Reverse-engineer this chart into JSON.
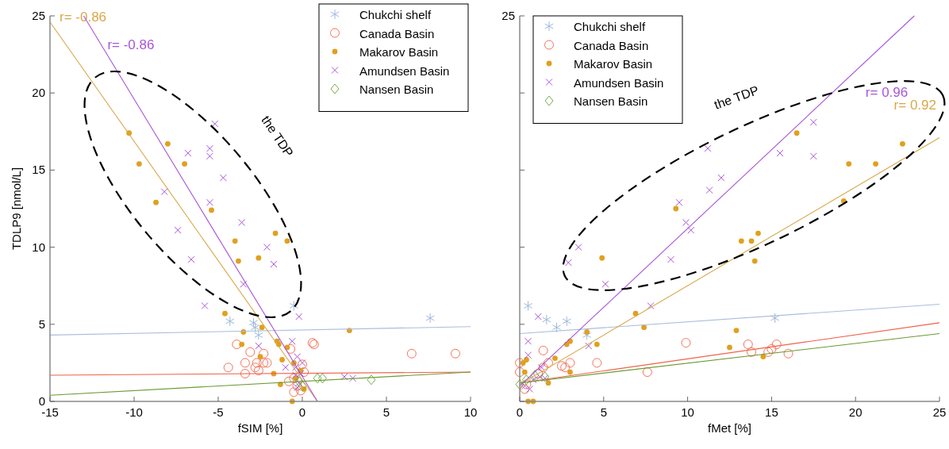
{
  "chart_data": [
    {
      "type": "scatter",
      "xlabel": "fSIM [%]",
      "ylabel": "TDLP9 [nmol/L]",
      "xlim": [
        -15,
        10
      ],
      "xticks": [
        -15,
        -10,
        -5,
        0,
        5,
        10
      ],
      "ylim": [
        0,
        25
      ],
      "yticks": [
        0,
        5,
        10,
        15,
        20,
        25
      ],
      "grid": false,
      "legend": "top right",
      "annotations": [
        "the TDP"
      ],
      "series": [
        {
          "name": "Chukchi shelf",
          "color": "#9fb8da",
          "x": [
            -4.3,
            -2.9,
            -2.8,
            -2.6,
            -0.5,
            7.6
          ],
          "values": [
            5.2,
            5.1,
            4.8,
            4.3,
            6.2,
            5.4
          ]
        },
        {
          "name": "Canada Basin",
          "color": "#f4735a",
          "marker": "circle",
          "x": [
            -3.9,
            -3.1,
            -2.3,
            -4.4,
            -3.4,
            -2.8,
            -2.7,
            -2.3,
            -2.1,
            -3.4,
            -2.6,
            -0.7,
            0.6,
            0.7,
            6.5,
            9.1,
            0.0,
            0.1,
            -0.8,
            -0.5,
            -0.1,
            -0.3,
            -0.5
          ],
          "values": [
            3.7,
            3.2,
            3.1,
            2.2,
            2.5,
            2.2,
            2.5,
            2.5,
            2.5,
            1.8,
            2.0,
            3.4,
            3.8,
            3.7,
            3.1,
            3.1,
            2.4,
            1.9,
            1.3,
            0.6,
            0.7,
            1.0,
            1.5
          ]
        },
        {
          "name": "Makarov Basin",
          "color": "#e0a020",
          "marker": "circle",
          "x": [
            -10.3,
            -8.0,
            -9.7,
            -7.0,
            -8.7,
            -5.4,
            -1.6,
            -4.0,
            -3.8,
            -2.6,
            -4.6,
            -3.5,
            -3.6,
            -2.4,
            -2.5,
            -1.7,
            -1.5,
            -0.9,
            2.8,
            -1.4,
            -0.9,
            -1.2,
            -1.3,
            -0.5,
            -0.6,
            -0.4,
            -0.1,
            0.1
          ],
          "values": [
            17.4,
            16.7,
            15.4,
            15.4,
            12.9,
            12.4,
            10.9,
            10.4,
            9.1,
            9.3,
            5.7,
            4.5,
            3.7,
            4.8,
            2.9,
            1.8,
            3.9,
            10.4,
            4.6,
            3.7,
            3.5,
            2.7,
            1.1,
            2.5,
            0.0,
            1.5,
            2.0,
            0.8
          ]
        },
        {
          "name": "Amundsen Basin",
          "color": "#a855d8",
          "marker": "cross",
          "x": [
            -5.2,
            -6.8,
            -5.5,
            -5.5,
            -4.7,
            -8.2,
            -5.5,
            -3.6,
            -7.4,
            -6.6,
            -2.1,
            -1.7,
            -3.5,
            -5.8,
            -2.6,
            -0.2,
            -0.6,
            -0.3,
            -1.0,
            2.5,
            3.0,
            -0.4,
            -0.2,
            -0.3,
            -0.1,
            0.0,
            -0.4
          ],
          "values": [
            18.0,
            16.1,
            16.4,
            15.9,
            14.5,
            13.6,
            12.9,
            11.6,
            11.1,
            9.2,
            10.0,
            8.9,
            7.6,
            6.2,
            3.6,
            5.5,
            3.9,
            2.9,
            2.2,
            1.6,
            1.5,
            1.7,
            1.2,
            0.9,
            1.8,
            2.5,
            2.2
          ]
        },
        {
          "name": "Nansen Basin",
          "color": "#77ac48",
          "marker": "diamond",
          "x": [
            0.9,
            1.2,
            4.1,
            -0.2,
            0.0
          ],
          "values": [
            1.5,
            1.5,
            1.4,
            1.3,
            1.0
          ]
        },
        {
          "type": "line",
          "color": "#a9bedb",
          "x": [
            -15,
            10
          ],
          "values": [
            4.3,
            4.85
          ]
        },
        {
          "type": "line",
          "color": "#f0604a",
          "x": [
            -15,
            10
          ],
          "values": [
            1.7,
            1.9
          ]
        },
        {
          "type": "line",
          "name": "r= -0.86",
          "color": "#d8a84a",
          "x": [
            -15,
            0.9
          ],
          "values": [
            24.6,
            0
          ]
        },
        {
          "type": "line",
          "name": "r= -0.86",
          "color": "#a855d8",
          "x": [
            -13,
            0.9
          ],
          "values": [
            25,
            0
          ]
        },
        {
          "type": "line",
          "color": "#6a9a30",
          "x": [
            -15,
            10
          ],
          "values": [
            0.4,
            1.9
          ]
        }
      ]
    },
    {
      "type": "scatter",
      "xlabel": "fMet [%]",
      "xlim": [
        0,
        25
      ],
      "xticks": [
        0,
        5,
        10,
        15,
        20,
        25
      ],
      "ylim": [
        0,
        25
      ],
      "yticks": [
        0,
        5,
        10,
        15,
        20,
        25
      ],
      "tick_labels": "x",
      "grid": false,
      "legend": "top left",
      "annotations": [
        "the TDP",
        "25"
      ],
      "series": [
        {
          "name": "Chukchi shelf",
          "color": "#9fb8da",
          "x": [
            0.5,
            1.6,
            2.2,
            2.8,
            4.0,
            15.2
          ],
          "values": [
            6.2,
            5.3,
            4.8,
            5.2,
            4.3,
            5.4
          ]
        },
        {
          "name": "Canada Basin",
          "color": "#f4735a",
          "marker": "circle",
          "x": [
            9.9,
            4.6,
            7.6,
            1.4,
            0.0,
            0.0,
            3.0,
            2.7,
            2.5,
            1.7,
            1.4,
            1.1,
            0.4,
            0.3,
            13.6,
            13.8,
            14.8,
            15.0,
            15.3,
            16.0
          ],
          "values": [
            3.8,
            2.5,
            1.9,
            3.3,
            2.5,
            1.9,
            2.5,
            2.2,
            2.3,
            2.5,
            2.2,
            1.8,
            1.1,
            0.8,
            3.7,
            3.2,
            3.2,
            3.4,
            3.7,
            3.1
          ]
        },
        {
          "name": "Makarov Basin",
          "color": "#e0a020",
          "marker": "circle",
          "x": [
            9.3,
            4.9,
            13.2,
            6.9,
            7.4,
            12.9,
            4.0,
            3.0,
            2.8,
            4.6,
            12.5,
            2.1,
            0.4,
            0.2,
            0.3,
            1.7,
            3.0,
            0.5,
            0.8,
            16.5,
            22.8,
            19.6,
            21.2,
            19.3,
            13.8,
            14.2,
            14.0,
            14.5
          ],
          "values": [
            12.5,
            9.3,
            10.4,
            5.7,
            4.8,
            4.6,
            4.5,
            3.9,
            3.7,
            3.7,
            3.5,
            2.8,
            2.7,
            2.5,
            1.9,
            1.2,
            1.9,
            0.0,
            0.0,
            17.4,
            16.7,
            15.4,
            15.4,
            13.0,
            10.4,
            10.9,
            9.1,
            2.9
          ]
        },
        {
          "name": "Amundsen Basin",
          "color": "#a855d8",
          "marker": "cross",
          "x": [
            11.2,
            12.0,
            11.3,
            9.5,
            9.9,
            10.2,
            9.0,
            3.5,
            2.9,
            5.1,
            7.8,
            1.1,
            0.5,
            4.1,
            0.5,
            1.3,
            1.2,
            0.8,
            1.5,
            0.3,
            0.6,
            17.5,
            15.5,
            17.5
          ],
          "values": [
            16.4,
            14.5,
            13.7,
            12.9,
            11.6,
            11.1,
            9.2,
            10.0,
            9.0,
            7.6,
            6.2,
            5.5,
            3.9,
            3.6,
            3.0,
            2.2,
            1.6,
            1.4,
            1.5,
            1.0,
            0.8,
            18.1,
            16.1,
            15.9
          ]
        },
        {
          "name": "Nansen Basin",
          "color": "#77ac48",
          "marker": "diamond",
          "x": [
            0.9,
            1.5,
            0.4,
            0.0
          ],
          "values": [
            1.7,
            1.6,
            1.4,
            1.1
          ]
        },
        {
          "type": "line",
          "color": "#a9bedb",
          "x": [
            0,
            25
          ],
          "values": [
            4.4,
            6.3
          ]
        },
        {
          "type": "line",
          "color": "#f0604a",
          "x": [
            0,
            25
          ],
          "values": [
            1.2,
            5.1
          ]
        },
        {
          "type": "line",
          "name": "r= 0.92",
          "color": "#d8a84a",
          "x": [
            0,
            25
          ],
          "values": [
            1.1,
            17.1
          ]
        },
        {
          "type": "line",
          "name": "r= 0.96",
          "color": "#a855d8",
          "x": [
            0,
            23.5
          ],
          "values": [
            1.0,
            25
          ]
        },
        {
          "type": "line",
          "color": "#6a9a30",
          "x": [
            0,
            25
          ],
          "values": [
            1.2,
            4.4
          ]
        }
      ]
    }
  ]
}
